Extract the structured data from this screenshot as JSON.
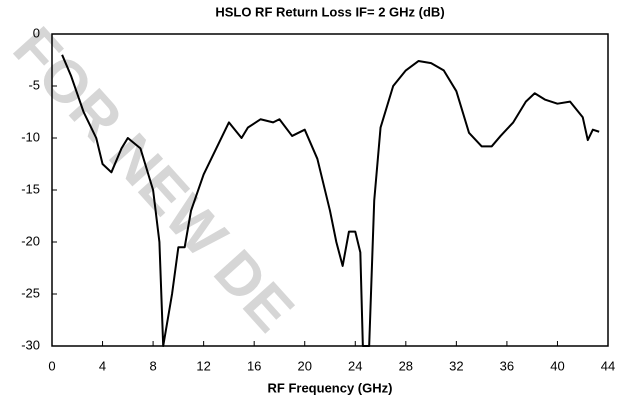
{
  "chart_data": {
    "type": "line",
    "title": "HSLO RF Return Loss IF= 2 GHz (dB)",
    "xlabel": "RF Frequency (GHz)",
    "watermark": "FOR NEW DE",
    "x": [
      0.8,
      1.5,
      2.5,
      3.5,
      4,
      4.7,
      5.5,
      6,
      7,
      8,
      8.5,
      8.8,
      9.5,
      10,
      10.5,
      11,
      12,
      13,
      14,
      15,
      15.5,
      16.5,
      17.5,
      18,
      19,
      20,
      21,
      22,
      22.5,
      23,
      23.5,
      24,
      24.4,
      24.6,
      25.1,
      25.5,
      26,
      27,
      28,
      29,
      30,
      31,
      32,
      33,
      34,
      34.8,
      35.5,
      36.5,
      37.5,
      38.2,
      39,
      40,
      41,
      42,
      42.4,
      42.8,
      43.3
    ],
    "series": [
      {
        "name": "RF Return Loss",
        "color": "#000000",
        "values": [
          -2,
          -4,
          -7.5,
          -10,
          -12.5,
          -13.3,
          -11,
          -10,
          -11,
          -15,
          -20,
          -30,
          -25,
          -20.5,
          -20.5,
          -17,
          -13.5,
          -11,
          -8.5,
          -10,
          -9,
          -8.2,
          -8.5,
          -8.2,
          -9.8,
          -9.2,
          -12,
          -17,
          -20,
          -22.3,
          -19,
          -19,
          -21,
          -30,
          -30,
          -16,
          -9,
          -5,
          -3.5,
          -2.6,
          -2.8,
          -3.5,
          -5.5,
          -9.5,
          -10.8,
          -10.8,
          -9.8,
          -8.5,
          -6.5,
          -5.7,
          -6.3,
          -6.7,
          -6.5,
          -8,
          -10.2,
          -9.2,
          -9.4
        ]
      }
    ],
    "xlim": [
      0,
      44
    ],
    "xticks": [
      0,
      4,
      8,
      12,
      16,
      20,
      24,
      28,
      32,
      36,
      40,
      44
    ],
    "ylim": [
      -30,
      0
    ],
    "yticks": [
      0,
      -5,
      -10,
      -15,
      -20,
      -25,
      -30
    ],
    "grid": false,
    "legend": false
  }
}
